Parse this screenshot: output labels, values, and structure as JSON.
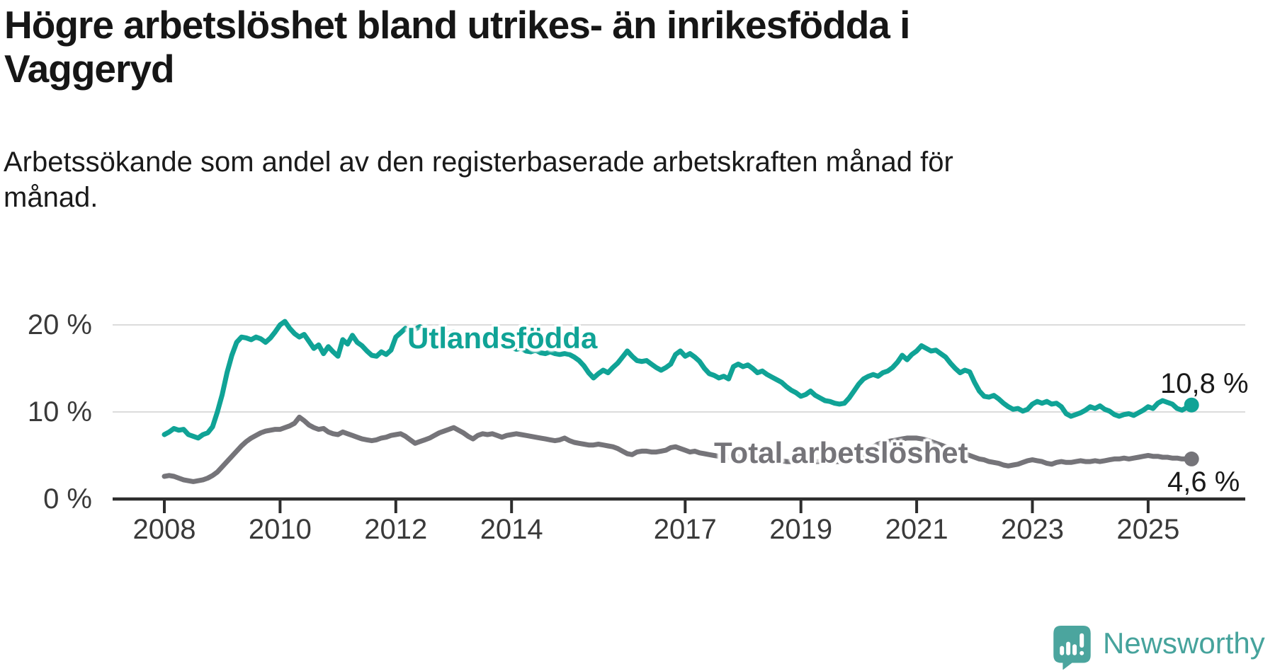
{
  "title_lines": [
    "Högre arbetslöshet bland utrikes- än inrikesfödda i",
    "Vaggeryd"
  ],
  "subtitle_lines": [
    "Arbetssökande som andel av den registerbaserade arbetskraften månad för",
    "månad."
  ],
  "branding": {
    "logo_text": "Newsworthy",
    "logo_color": "#4ba59e",
    "text_color": "#46a39c"
  },
  "colors": {
    "grid": "#dcdcdc",
    "axis": "#2d2d2d",
    "tick_label": "#3a3a3a",
    "value_label": "#1a1a1a"
  },
  "chart_data": {
    "type": "line",
    "title": "Högre arbetslöshet bland utrikes- än inrikesfödda i Vaggeryd",
    "subtitle": "Arbetssökande som andel av den registerbaserade arbetskraften månad för månad.",
    "xlabel": "",
    "ylabel": "",
    "grid": "horizontal",
    "x_axis": {
      "range": [
        2008.0,
        2025.83
      ],
      "ticks": [
        {
          "value": 2008,
          "label": "2008"
        },
        {
          "value": 2010,
          "label": "2010"
        },
        {
          "value": 2012,
          "label": "2012"
        },
        {
          "value": 2014,
          "label": "2014"
        },
        {
          "value": 2017,
          "label": "2017"
        },
        {
          "value": 2019,
          "label": "2019"
        },
        {
          "value": 2021,
          "label": "2021"
        },
        {
          "value": 2023,
          "label": "2023"
        },
        {
          "value": 2025,
          "label": "2025"
        }
      ]
    },
    "y_axis": {
      "range": [
        0,
        21
      ],
      "unit": "%",
      "ticks": [
        {
          "value": 0,
          "label": "0 %"
        },
        {
          "value": 10,
          "label": "10 %"
        },
        {
          "value": 20,
          "label": "20 %"
        }
      ]
    },
    "series": [
      {
        "name": "Utlandsfödda",
        "label": "Utlandsfödda",
        "end_label": "10,8 %",
        "end_value": 10.8,
        "color": "#10a396",
        "start": 2008.0,
        "step_months": 1,
        "values": [
          7.4,
          7.7,
          8.1,
          7.9,
          8.0,
          7.4,
          7.2,
          7.0,
          7.4,
          7.6,
          8.3,
          10.0,
          12.0,
          14.5,
          16.5,
          18.0,
          18.6,
          18.5,
          18.3,
          18.6,
          18.4,
          18.0,
          18.5,
          19.2,
          20.0,
          20.4,
          19.6,
          19.0,
          18.6,
          18.9,
          18.1,
          17.3,
          17.7,
          16.7,
          17.5,
          16.9,
          16.4,
          18.3,
          17.8,
          18.8,
          18.0,
          17.6,
          17.0,
          16.5,
          16.4,
          16.9,
          16.6,
          17.1,
          18.6,
          19.1,
          19.6,
          19.2,
          19.5,
          19.8,
          19.4,
          19.1,
          19.3,
          19.0,
          18.8,
          19.0,
          19.2,
          18.9,
          18.6,
          18.4,
          18.5,
          18.2,
          18.0,
          17.8,
          18.0,
          17.7,
          17.5,
          17.6,
          17.4,
          17.2,
          17.3,
          17.0,
          16.9,
          17.1,
          16.8,
          16.7,
          16.9,
          16.7,
          16.6,
          16.7,
          16.6,
          16.3,
          15.9,
          15.3,
          14.5,
          13.9,
          14.4,
          14.8,
          14.5,
          15.1,
          15.6,
          16.3,
          17.0,
          16.4,
          15.9,
          15.8,
          15.9,
          15.5,
          15.1,
          14.8,
          15.1,
          15.5,
          16.6,
          17.0,
          16.4,
          16.7,
          16.3,
          15.8,
          15.0,
          14.4,
          14.2,
          13.9,
          14.1,
          13.8,
          15.2,
          15.5,
          15.2,
          15.4,
          15.0,
          14.5,
          14.7,
          14.3,
          14.0,
          13.7,
          13.4,
          12.9,
          12.5,
          12.2,
          11.8,
          12.0,
          12.4,
          11.9,
          11.6,
          11.3,
          11.2,
          11.0,
          10.9,
          11.0,
          11.6,
          12.4,
          13.2,
          13.8,
          14.1,
          14.3,
          14.1,
          14.5,
          14.7,
          15.1,
          15.7,
          16.5,
          16.0,
          16.6,
          17.0,
          17.6,
          17.3,
          17.0,
          17.1,
          16.7,
          16.3,
          15.6,
          15.0,
          14.5,
          14.8,
          14.6,
          13.4,
          12.4,
          11.8,
          11.7,
          11.9,
          11.5,
          11.0,
          10.6,
          10.3,
          10.4,
          10.1,
          10.3,
          10.9,
          11.2,
          11.0,
          11.2,
          10.9,
          11.0,
          10.6,
          9.8,
          9.5,
          9.7,
          9.9,
          10.2,
          10.6,
          10.4,
          10.7,
          10.3,
          10.1,
          9.7,
          9.5,
          9.7,
          9.8,
          9.6,
          9.9,
          10.2,
          10.6,
          10.4,
          11.0,
          11.3,
          11.1,
          10.9,
          10.4,
          10.2,
          10.5,
          10.8
        ]
      },
      {
        "name": "Total arbetslöshet",
        "label": "Total arbetslöshet",
        "end_label": "4,6 %",
        "end_value": 4.6,
        "color": "#757479",
        "start": 2008.0,
        "step_months": 1,
        "values": [
          2.6,
          2.7,
          2.6,
          2.4,
          2.2,
          2.1,
          2.0,
          2.1,
          2.2,
          2.4,
          2.7,
          3.1,
          3.7,
          4.3,
          4.9,
          5.5,
          6.1,
          6.6,
          7.0,
          7.3,
          7.6,
          7.8,
          7.9,
          8.0,
          8.0,
          8.2,
          8.4,
          8.7,
          9.4,
          9.0,
          8.5,
          8.2,
          8.0,
          8.1,
          7.7,
          7.5,
          7.4,
          7.7,
          7.5,
          7.3,
          7.1,
          6.9,
          6.8,
          6.7,
          6.8,
          7.0,
          7.1,
          7.3,
          7.4,
          7.5,
          7.2,
          6.8,
          6.4,
          6.6,
          6.8,
          7.0,
          7.3,
          7.6,
          7.8,
          8.0,
          8.2,
          7.9,
          7.6,
          7.2,
          6.9,
          7.3,
          7.5,
          7.4,
          7.5,
          7.3,
          7.1,
          7.3,
          7.4,
          7.5,
          7.4,
          7.3,
          7.2,
          7.1,
          7.0,
          6.9,
          6.8,
          6.7,
          6.8,
          7.0,
          6.7,
          6.5,
          6.4,
          6.3,
          6.2,
          6.2,
          6.3,
          6.2,
          6.1,
          6.0,
          5.8,
          5.5,
          5.2,
          5.1,
          5.4,
          5.5,
          5.5,
          5.4,
          5.4,
          5.5,
          5.6,
          5.9,
          6.0,
          5.8,
          5.6,
          5.4,
          5.5,
          5.3,
          5.2,
          5.1,
          5.0,
          4.9,
          4.9,
          4.8,
          4.8,
          4.9,
          4.8,
          4.7,
          4.7,
          4.6,
          4.6,
          4.5,
          4.5,
          4.4,
          4.4,
          4.3,
          4.3,
          4.4,
          4.4,
          4.5,
          4.4,
          4.3,
          4.3,
          4.2,
          4.2,
          4.3,
          4.3,
          4.4,
          4.5,
          4.7,
          4.9,
          5.1,
          5.5,
          6.0,
          6.3,
          6.5,
          6.6,
          6.7,
          6.8,
          6.9,
          7.0,
          7.0,
          7.0,
          6.9,
          6.8,
          6.6,
          6.4,
          6.2,
          6.0,
          5.8,
          5.6,
          5.4,
          5.2,
          5.0,
          4.8,
          4.6,
          4.5,
          4.3,
          4.2,
          4.1,
          3.9,
          3.8,
          3.9,
          4.0,
          4.2,
          4.4,
          4.5,
          4.4,
          4.3,
          4.1,
          4.0,
          4.2,
          4.3,
          4.2,
          4.2,
          4.3,
          4.4,
          4.3,
          4.3,
          4.4,
          4.3,
          4.4,
          4.5,
          4.6,
          4.6,
          4.7,
          4.6,
          4.7,
          4.8,
          4.9,
          5.0,
          4.9,
          4.9,
          4.8,
          4.8,
          4.7,
          4.7,
          4.6,
          4.6,
          4.6
        ]
      }
    ]
  }
}
